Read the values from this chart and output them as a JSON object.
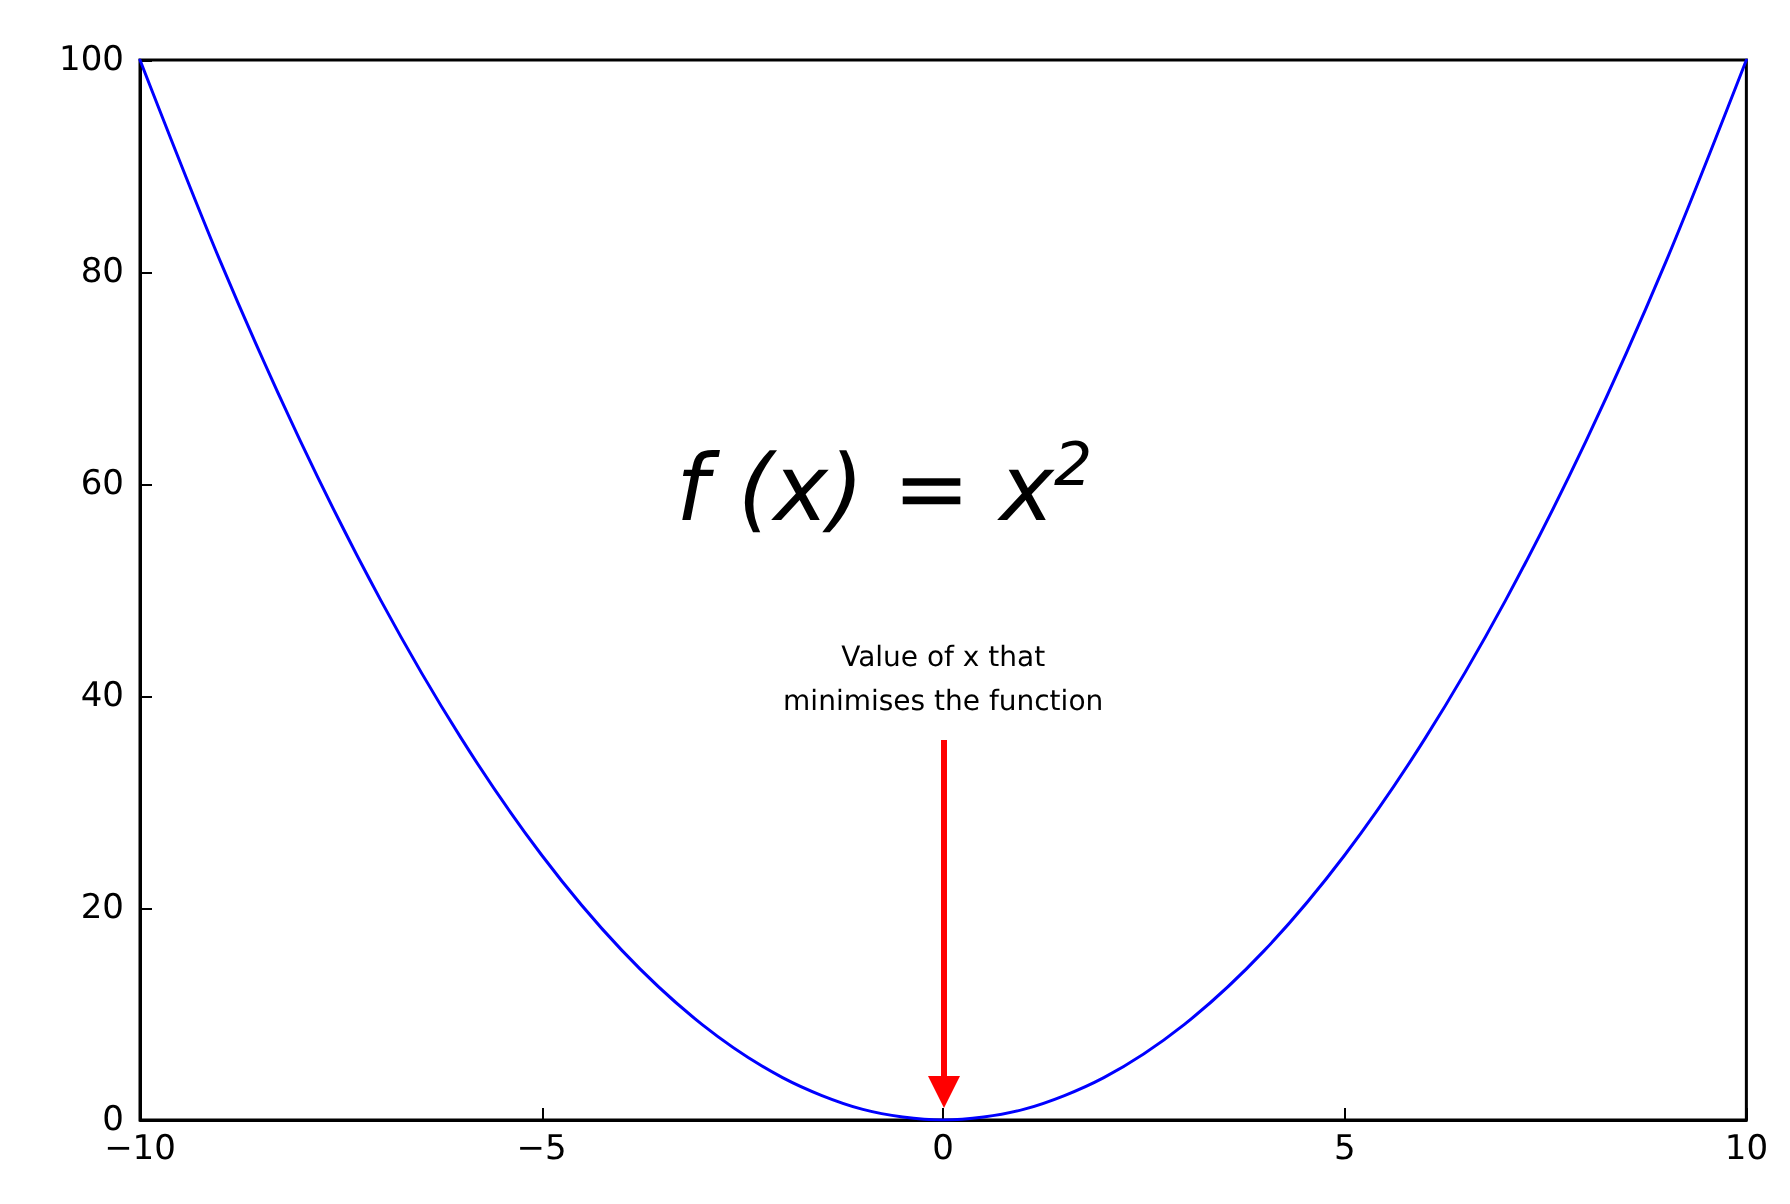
{
  "chart_data": {
    "type": "line",
    "x": [
      -10,
      -9,
      -8,
      -7,
      -6,
      -5,
      -4,
      -3,
      -2,
      -1,
      0,
      1,
      2,
      3,
      4,
      5,
      6,
      7,
      8,
      9,
      10
    ],
    "series": [
      {
        "color": "#0000ff",
        "values": [
          100,
          81,
          64,
          49,
          36,
          25,
          16,
          9,
          4,
          1,
          0,
          1,
          4,
          9,
          16,
          25,
          36,
          49,
          64,
          81,
          100
        ]
      }
    ],
    "xlim": [
      -10,
      10
    ],
    "xticks": [
      {
        "value": -10,
        "label": "−10"
      },
      {
        "value": -5,
        "label": "−5"
      },
      0,
      5,
      10
    ],
    "ylim": [
      0,
      100
    ],
    "yticks": [
      0,
      20,
      40,
      60,
      80,
      100
    ],
    "annotations": [
      "f (x) = x$^{2}$",
      "Value of x that\nminimises the function"
    ],
    "grid": false,
    "marker": "none",
    "line_style": "solid"
  }
}
